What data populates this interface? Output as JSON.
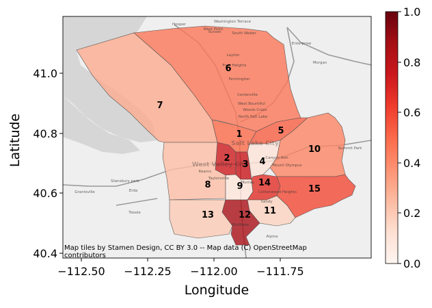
{
  "axes": {
    "xlabel": "Longitude",
    "ylabel": "Latitude",
    "xticks": [
      "−112.50",
      "−112.25",
      "−112.00",
      "−111.75"
    ],
    "yticks": [
      "41.0",
      "40.8",
      "40.6",
      "40.4"
    ]
  },
  "attribution": {
    "line1": "Map tiles by Stamen Design, CC BY 3.0 -- Map data (C) OpenStreetMap",
    "line2": "contributors"
  },
  "colorbar": {
    "ticks": [
      "0.0",
      "0.2",
      "0.4",
      "0.6",
      "0.8",
      "1.0"
    ],
    "colormap": "Reds"
  },
  "basemap_labels": [
    "Hooper",
    "Washington Terrace",
    "West Point",
    "Sunset",
    "South Weber",
    "Enterprise",
    "Layton",
    "Fruit Heights",
    "Morgan",
    "Farmington",
    "Centerville",
    "West Bountiful",
    "Woods Cross",
    "North Salt Lake",
    "Salt Lake City",
    "West Valley City",
    "Stansbury park",
    "Erda",
    "Grantsville",
    "Tooele",
    "Canyon Rim",
    "Mount Olympus",
    "Cottonwood Heights",
    "Sandy",
    "Bluffdale",
    "Alpine",
    "Summit Park",
    "Kearns",
    "Taylorsville",
    "Murray"
  ],
  "regions": [
    {
      "id": "1",
      "value": 0.5
    },
    {
      "id": "2",
      "value": 0.74
    },
    {
      "id": "3",
      "value": 0.76
    },
    {
      "id": "4",
      "value": 0.1
    },
    {
      "id": "5",
      "value": 0.53
    },
    {
      "id": "6",
      "value": 0.46
    },
    {
      "id": "7",
      "value": 0.3
    },
    {
      "id": "8",
      "value": 0.24
    },
    {
      "id": "9",
      "value": 0.09
    },
    {
      "id": "10",
      "value": 0.42
    },
    {
      "id": "11",
      "value": 0.17
    },
    {
      "id": "12",
      "value": 0.86
    },
    {
      "id": "13",
      "value": 0.2
    },
    {
      "id": "14",
      "value": 0.67
    },
    {
      "id": "15",
      "value": 0.59
    }
  ],
  "colors": {
    "highway": "#9a9a9a",
    "lake": "#d6d6d6",
    "land": "#efefef"
  }
}
